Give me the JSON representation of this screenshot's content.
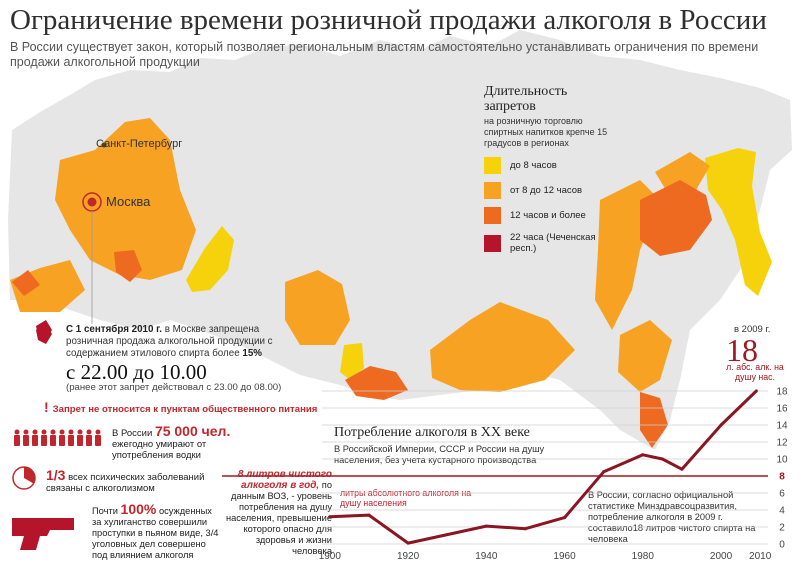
{
  "header": {
    "title": "Ограничение времени розничной продажи алкоголя в России",
    "subtitle": "В России существует закон, который позволяет региональным властям самостоятельно устанавливать ограничения по времени продажи алкогольной продукции"
  },
  "map": {
    "cities": {
      "spb": "Санкт-Петербург",
      "moscow": "Москва"
    },
    "colors": {
      "land": "#e6e6e6",
      "yellow": "#f5d20c",
      "light_orange": "#f7a223",
      "dark_orange": "#ee6a21",
      "red": "#b5152b"
    }
  },
  "legend": {
    "title": "Длительность запретов",
    "subtitle": "на розничную торговлю спиртных напитков крепче 15 градусов в регионах",
    "items": [
      {
        "label": "до 8 часов",
        "color": "#f5d20c"
      },
      {
        "label": "от 8 до 12 часов",
        "color": "#f7a223"
      },
      {
        "label": "12 часов и более",
        "color": "#ee6a21"
      },
      {
        "label": "22 часа (Чеченская респ.)",
        "color": "#b5152b"
      }
    ]
  },
  "moscow_note": {
    "date": "С 1 сентября 2010 г.",
    "text": "в Москве запрещена розничная продажа алкогольной продукции с содержанием этилового спирта более",
    "percent": "15%",
    "time_range": "с 22.00 до 10.00",
    "before": "(ранее этот запрет действовал с 23.00 до 08.00)",
    "exclusion": "Запрет не относится к пунктам общественного питания"
  },
  "stats": {
    "deaths_pre": "В России",
    "deaths_value": "75 000 чел.",
    "deaths_text": "ежегодно умирают от употребления водки",
    "mental_value": "1/3",
    "mental_text": "всех психических заболеваний связаны с алкоголизмом",
    "crime_pre": "Почти",
    "crime_value": "100%",
    "crime_text": "осужденных за хулиганство совершили проступки в пьяном виде, 3/4 уголовных дел совершено под влиянием алкоголя",
    "who_value": "8 литров чистого алкоголя в год,",
    "who_text": "по данным ВОЗ, - уровень потребления на душу населения, превышение которого опасно для здоровья и жизни человека"
  },
  "chart_text": {
    "title": "Потребление алкоголя в XX веке",
    "subtitle": "В Российской Империи, СССР и России на душу населения, без учета кустарного производства",
    "limit_label": "литры абсолютного алкоголя на душу населения",
    "note": "В России, согласно официальной статистике Минздравсоцразвития, потребление алкоголя в 2009 г. составило18 литров чистого спирта на человека",
    "peak_year": "в 2009 г.",
    "peak_value": "18",
    "peak_unit": "л. абс. алк. на душу нас."
  },
  "chart_data": {
    "type": "line",
    "title": "Потребление алкоголя в XX веке",
    "x_ticks": [
      "1900",
      "1920",
      "1940",
      "1960",
      "1980",
      "2000",
      "2010"
    ],
    "y_ticks": [
      "0",
      "2",
      "4",
      "6",
      "8",
      "10",
      "12",
      "14",
      "16",
      "18"
    ],
    "xlim": [
      1898,
      2012
    ],
    "ylim": [
      0,
      18
    ],
    "threshold": 8,
    "series": [
      {
        "x": [
          1900,
          1910,
          1920,
          1930,
          1940,
          1950,
          1960,
          1970,
          1980,
          1985,
          1990,
          2000,
          2009
        ],
        "y": [
          3.2,
          3.4,
          0.1,
          1.1,
          2.1,
          1.8,
          3.1,
          8.5,
          10.5,
          10.0,
          8.8,
          14.0,
          18.0
        ]
      }
    ]
  }
}
